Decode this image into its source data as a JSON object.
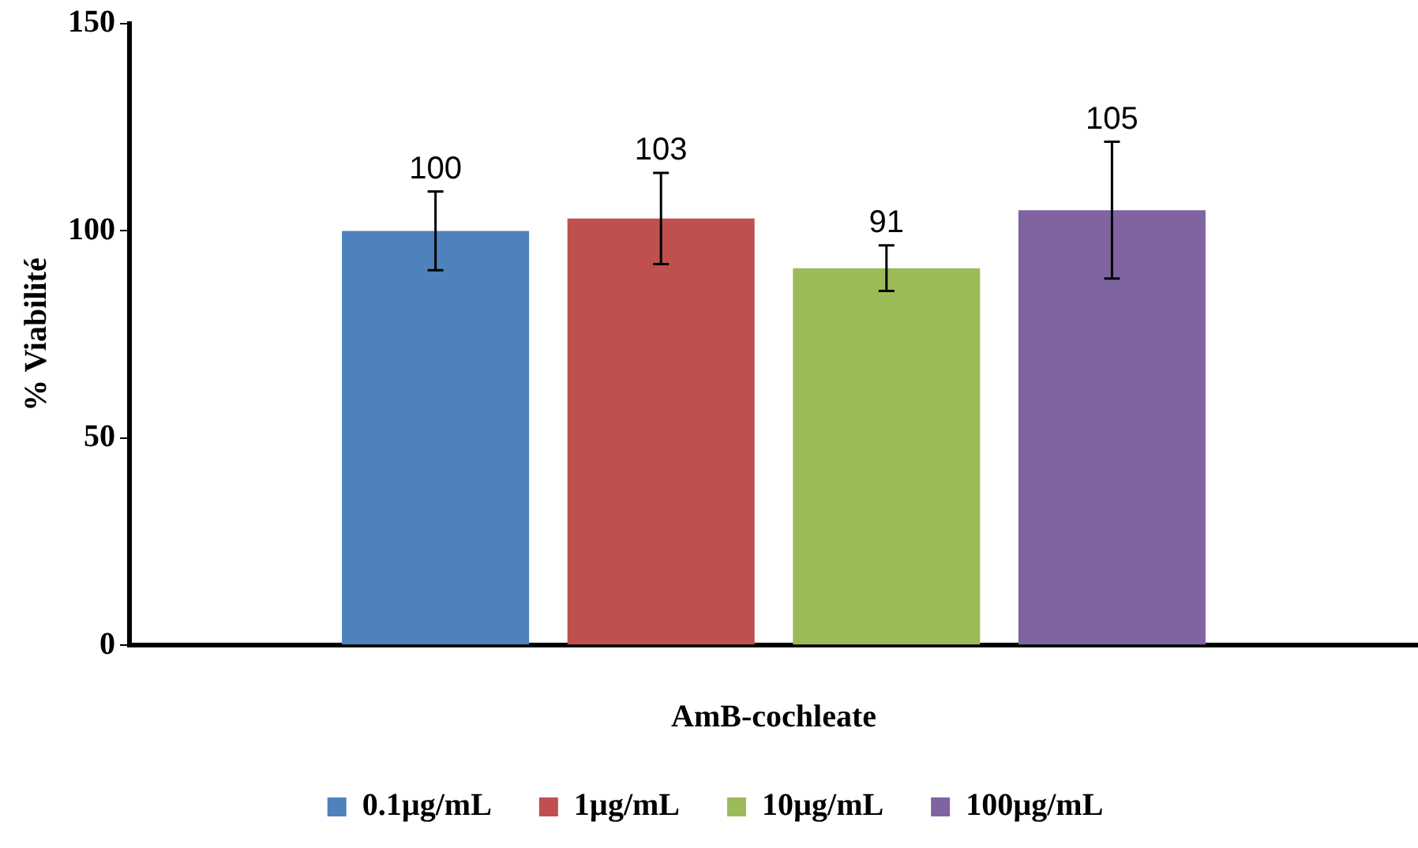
{
  "chart_data": {
    "type": "bar",
    "xlabel": "AmB-cochleate",
    "ylabel": "% Viabilité",
    "categories": [
      null
    ],
    "series": [
      {
        "name": "0.1µg/mL",
        "color": "#4f81bd",
        "values": [
          100
        ],
        "errors": [
          9.5
        ]
      },
      {
        "name": "1µg/mL",
        "color": "#c0504d",
        "values": [
          103
        ],
        "errors": [
          11
        ]
      },
      {
        "name": "10µg/mL",
        "color": "#9bbb59",
        "values": [
          91
        ],
        "errors": [
          5.5
        ]
      },
      {
        "name": "100µg/mL",
        "color": "#8064a2",
        "values": [
          105
        ],
        "errors": [
          16.5
        ]
      }
    ],
    "ylim": [
      0,
      150
    ],
    "yticks": [
      0,
      50,
      100,
      150
    ],
    "grid": false,
    "legend": "bottom",
    "data_labels": true
  }
}
